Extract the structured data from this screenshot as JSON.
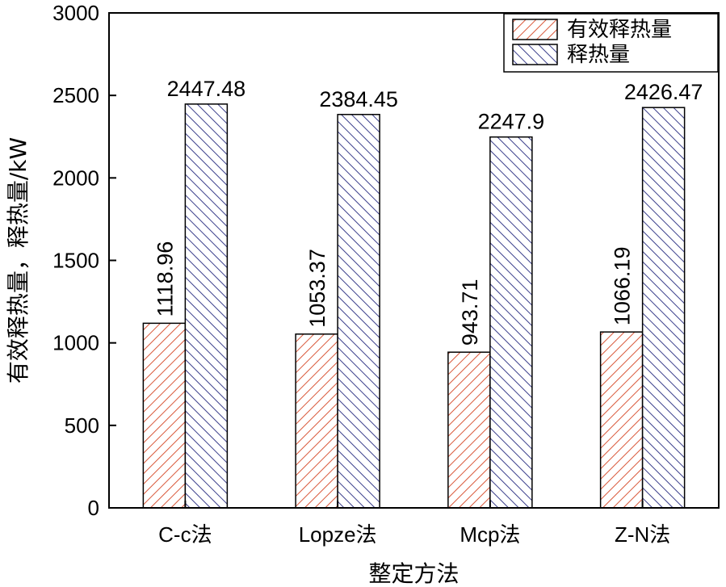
{
  "chart_data": {
    "type": "bar",
    "title": "",
    "xlabel": "整定方法",
    "ylabel": "有效释热量，释热量/kW",
    "categories": [
      "C-c法",
      "Lopze法",
      "Mcp法",
      "Z-N法"
    ],
    "series": [
      {
        "name": "有效释热量",
        "values": [
          1118.96,
          1053.37,
          943.71,
          1066.19
        ],
        "value_labels": [
          "1118.96",
          "1053.37",
          "943.71",
          "1066.19"
        ],
        "color": "#d9583a",
        "hatch": "diagonal-up"
      },
      {
        "name": "释热量",
        "values": [
          2447.48,
          2384.45,
          2247.9,
          2426.47
        ],
        "value_labels": [
          "2447.48",
          "2384.45",
          "2247.9",
          "2426.47"
        ],
        "color": "#3b3f8c",
        "hatch": "diagonal-down"
      }
    ],
    "ylim": [
      0,
      3000
    ],
    "yticks": [
      0,
      500,
      1000,
      1500,
      2000,
      2500,
      3000
    ],
    "legend_position": "top-right",
    "grid": false
  }
}
